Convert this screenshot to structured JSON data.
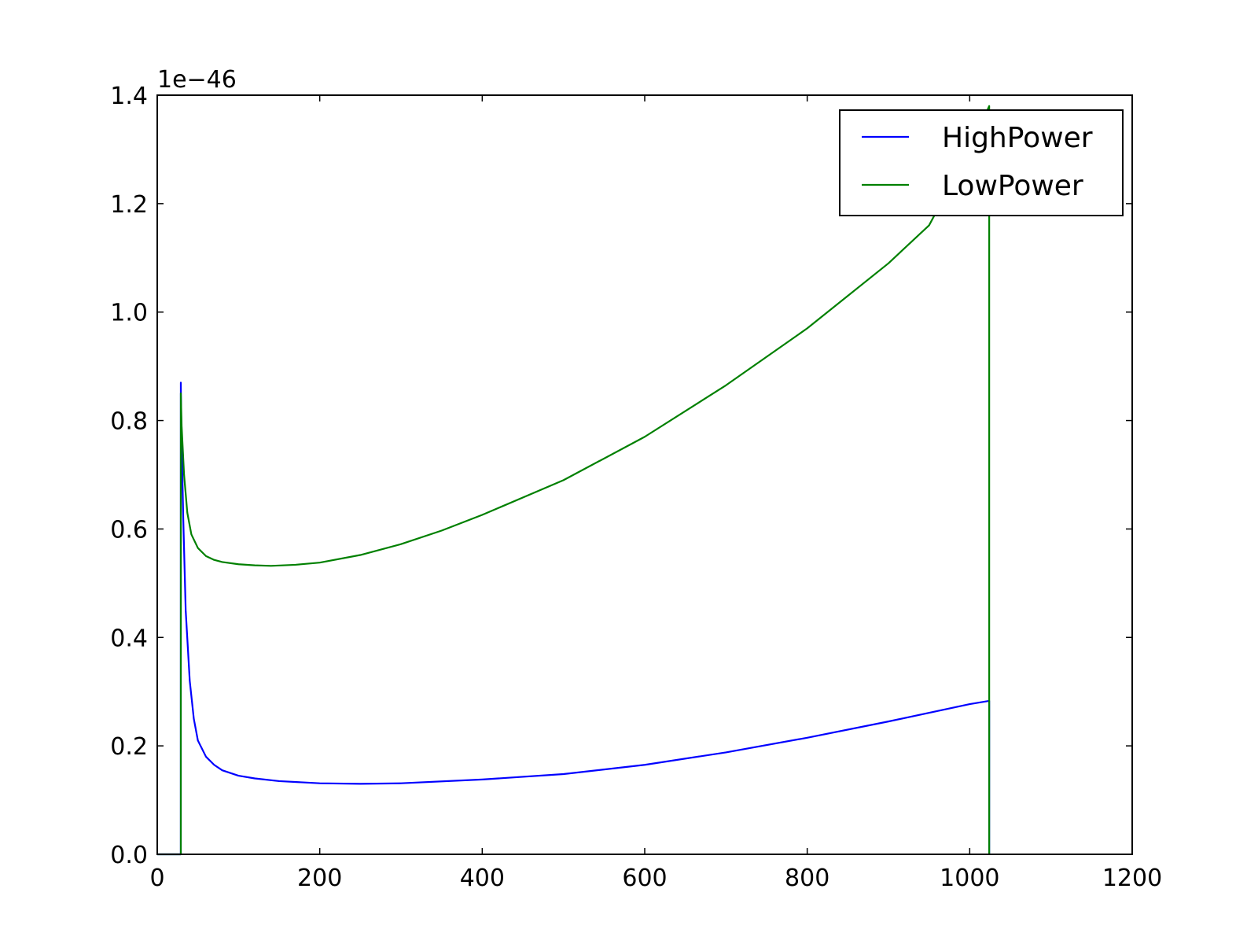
{
  "chart_data": {
    "type": "line",
    "title": "",
    "xlabel": "",
    "ylabel": "",
    "xlim": [
      0,
      1200
    ],
    "ylim": [
      0,
      1.4
    ],
    "y_offset_label": "1e−46",
    "x_ticks": [
      0,
      200,
      400,
      600,
      800,
      1000,
      1200
    ],
    "x_tick_labels": [
      "0",
      "200",
      "400",
      "600",
      "800",
      "1000",
      "1200"
    ],
    "y_ticks": [
      0,
      0.2,
      0.4,
      0.6,
      0.8,
      1.0,
      1.2,
      1.4
    ],
    "y_tick_labels": [
      "0.0",
      "0.2",
      "0.4",
      "0.6",
      "0.8",
      "1.0",
      "1.2",
      "1.4"
    ],
    "grid": false,
    "legend_position": "top-right",
    "series": [
      {
        "name": "HighPower",
        "color": "#0000ff",
        "x": [
          0,
          29,
          29,
          29.5,
          32,
          35,
          40,
          45,
          50,
          60,
          70,
          80,
          100,
          120,
          150,
          200,
          250,
          300,
          400,
          500,
          600,
          700,
          800,
          900,
          1000,
          1024,
          1024
        ],
        "y": [
          0,
          0,
          0.87,
          0.8,
          0.62,
          0.45,
          0.32,
          0.25,
          0.21,
          0.18,
          0.165,
          0.155,
          0.145,
          0.14,
          0.135,
          0.131,
          0.13,
          0.131,
          0.138,
          0.148,
          0.165,
          0.188,
          0.215,
          0.245,
          0.277,
          0.283,
          0
        ]
      },
      {
        "name": "LowPower",
        "color": "#008000",
        "x": [
          0,
          29,
          29,
          30,
          33,
          37,
          42,
          50,
          60,
          70,
          80,
          100,
          120,
          140,
          170,
          200,
          250,
          300,
          350,
          400,
          500,
          600,
          700,
          800,
          900,
          950,
          1000,
          1024,
          1024
        ],
        "y": [
          0,
          0,
          0.85,
          0.79,
          0.7,
          0.63,
          0.59,
          0.565,
          0.55,
          0.543,
          0.539,
          0.535,
          0.533,
          0.532,
          0.534,
          0.538,
          0.552,
          0.572,
          0.597,
          0.626,
          0.69,
          0.77,
          0.865,
          0.97,
          1.09,
          1.16,
          1.3,
          1.38,
          0
        ]
      }
    ]
  }
}
